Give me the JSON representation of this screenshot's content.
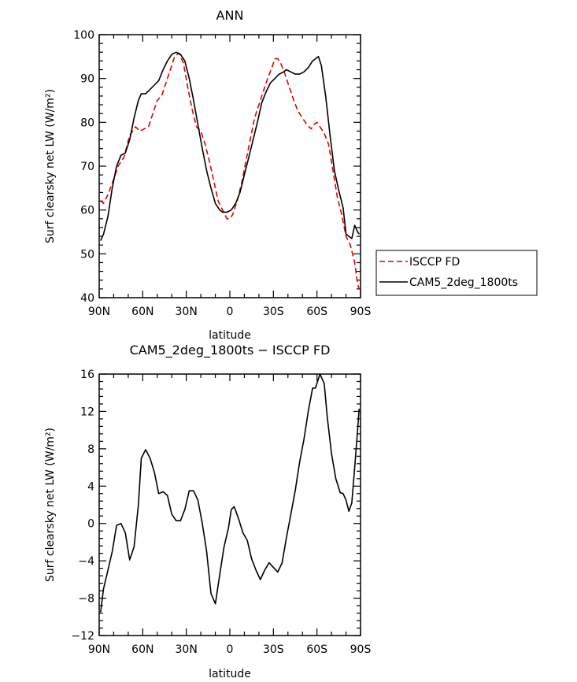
{
  "chart_data": [
    {
      "type": "line",
      "title": "ANN",
      "xlabel": "latitude",
      "ylabel": "Surf clearsky net LW (W/m²)",
      "xlim": [
        90,
        -90
      ],
      "ylim": [
        40,
        100
      ],
      "x_ticks": [
        {
          "value": 90,
          "label": "90N"
        },
        {
          "value": 60,
          "label": "60N"
        },
        {
          "value": 30,
          "label": "30N"
        },
        {
          "value": 0,
          "label": "0"
        },
        {
          "value": -30,
          "label": "30S"
        },
        {
          "value": -60,
          "label": "60S"
        },
        {
          "value": -90,
          "label": "90S"
        }
      ],
      "y_ticks": [
        40,
        50,
        60,
        70,
        80,
        90,
        100
      ],
      "legend_position": "right",
      "series": [
        {
          "name": "ISCCP FD",
          "color": "#e00000",
          "dash": "dashed",
          "points": [
            [
              89,
              62.2
            ],
            [
              87,
              61.5
            ],
            [
              84,
              63.5
            ],
            [
              80,
              67
            ],
            [
              77,
              70
            ],
            [
              73,
              72
            ],
            [
              69,
              77
            ],
            [
              65,
              79
            ],
            [
              62,
              78
            ],
            [
              59,
              78.5
            ],
            [
              56,
              79
            ],
            [
              53,
              82
            ],
            [
              50,
              85
            ],
            [
              47,
              86
            ],
            [
              44,
              89
            ],
            [
              41,
              92
            ],
            [
              38,
              95
            ],
            [
              35,
              95.8
            ],
            [
              32,
              93.5
            ],
            [
              29,
              88
            ],
            [
              26,
              83
            ],
            [
              23,
              79
            ],
            [
              20,
              78
            ],
            [
              17,
              75
            ],
            [
              14,
              71
            ],
            [
              11,
              66.5
            ],
            [
              8,
              62
            ],
            [
              5,
              60
            ],
            [
              2,
              58
            ],
            [
              0,
              58
            ],
            [
              -2,
              59
            ],
            [
              -5,
              62
            ],
            [
              -8,
              66
            ],
            [
              -11,
              71
            ],
            [
              -14,
              76
            ],
            [
              -17,
              81
            ],
            [
              -20,
              84
            ],
            [
              -23,
              87
            ],
            [
              -26,
              90
            ],
            [
              -29,
              92.5
            ],
            [
              -31,
              94.5
            ],
            [
              -33,
              94.5
            ],
            [
              -35,
              93.5
            ],
            [
              -38,
              91
            ],
            [
              -41,
              88
            ],
            [
              -44,
              85
            ],
            [
              -47,
              82.5
            ],
            [
              -50,
              81
            ],
            [
              -53,
              79.5
            ],
            [
              -56,
              78.5
            ],
            [
              -58,
              79.5
            ],
            [
              -60,
              80
            ],
            [
              -62,
              79
            ],
            [
              -65,
              77.5
            ],
            [
              -68,
              75
            ],
            [
              -71,
              69
            ],
            [
              -74,
              63
            ],
            [
              -77,
              59
            ],
            [
              -80,
              54
            ],
            [
              -83,
              52
            ],
            [
              -86,
              48
            ],
            [
              -88,
              43
            ],
            [
              -89,
              42
            ]
          ]
        },
        {
          "name": "CAM5_2deg_1800ts",
          "color": "#000000",
          "dash": "solid",
          "points": [
            [
              89,
              53
            ],
            [
              87,
              54.5
            ],
            [
              84,
              58.5
            ],
            [
              81,
              65
            ],
            [
              78,
              70
            ],
            [
              75,
              72.5
            ],
            [
              72,
              73
            ],
            [
              69,
              76
            ],
            [
              66,
              81
            ],
            [
              63,
              85
            ],
            [
              61,
              86.5
            ],
            [
              58,
              86.5
            ],
            [
              55,
              87.5
            ],
            [
              52,
              88.5
            ],
            [
              49,
              89.5
            ],
            [
              46,
              92
            ],
            [
              43,
              94
            ],
            [
              40,
              95.5
            ],
            [
              37,
              96
            ],
            [
              34,
              95.5
            ],
            [
              31,
              94
            ],
            [
              28,
              90
            ],
            [
              25,
              85
            ],
            [
              22,
              79.5
            ],
            [
              19,
              74
            ],
            [
              16,
              69
            ],
            [
              13,
              65
            ],
            [
              10,
              61.5
            ],
            [
              7,
              60
            ],
            [
              5,
              59.5
            ],
            [
              2,
              59.5
            ],
            [
              -1,
              60
            ],
            [
              -4,
              61.5
            ],
            [
              -7,
              64
            ],
            [
              -10,
              68
            ],
            [
              -13,
              72
            ],
            [
              -16,
              76
            ],
            [
              -19,
              80
            ],
            [
              -22,
              84.5
            ],
            [
              -25,
              87
            ],
            [
              -28,
              89
            ],
            [
              -31,
              90
            ],
            [
              -34,
              91
            ],
            [
              -37,
              91.5
            ],
            [
              -39,
              92
            ],
            [
              -42,
              91.5
            ],
            [
              -45,
              91
            ],
            [
              -48,
              91
            ],
            [
              -51,
              91.5
            ],
            [
              -54,
              92.5
            ],
            [
              -57,
              94
            ],
            [
              -59,
              94.5
            ],
            [
              -61,
              95
            ],
            [
              -63,
              93
            ],
            [
              -66,
              86
            ],
            [
              -69,
              77
            ],
            [
              -72,
              69
            ],
            [
              -75,
              64.5
            ],
            [
              -78,
              60.5
            ],
            [
              -80,
              54.5
            ],
            [
              -82,
              54
            ],
            [
              -84,
              53.5
            ],
            [
              -86,
              56.5
            ],
            [
              -88,
              55
            ],
            [
              -89,
              54.5
            ]
          ]
        }
      ]
    },
    {
      "type": "line",
      "title": "CAM5_2deg_1800ts − ISCCP FD",
      "xlabel": "latitude",
      "ylabel": "Surf clearsky net LW (W/m²)",
      "xlim": [
        90,
        -90
      ],
      "ylim": [
        -12,
        16
      ],
      "x_ticks": [
        {
          "value": 90,
          "label": "90N"
        },
        {
          "value": 60,
          "label": "60N"
        },
        {
          "value": 30,
          "label": "30N"
        },
        {
          "value": 0,
          "label": "0"
        },
        {
          "value": -30,
          "label": "30S"
        },
        {
          "value": -60,
          "label": "60S"
        },
        {
          "value": -90,
          "label": "90S"
        }
      ],
      "y_ticks": [
        -12,
        -8,
        -4,
        0,
        4,
        8,
        12,
        16
      ],
      "series": [
        {
          "color": "#000000",
          "dash": "solid",
          "points": [
            [
              89,
              -9.5
            ],
            [
              87,
              -7
            ],
            [
              84,
              -5
            ],
            [
              81,
              -3
            ],
            [
              78,
              -0.2
            ],
            [
              75,
              0
            ],
            [
              72,
              -1
            ],
            [
              69,
              -3.9
            ],
            [
              66,
              -2.5
            ],
            [
              63,
              2
            ],
            [
              61,
              7
            ],
            [
              58,
              7.9
            ],
            [
              55,
              7
            ],
            [
              52,
              5.5
            ],
            [
              49,
              3.2
            ],
            [
              46,
              3.4
            ],
            [
              43,
              3
            ],
            [
              40,
              1
            ],
            [
              37,
              0.3
            ],
            [
              34,
              0.3
            ],
            [
              31,
              1.5
            ],
            [
              28,
              3.5
            ],
            [
              25,
              3.5
            ],
            [
              22,
              2.5
            ],
            [
              19,
              0
            ],
            [
              16,
              -3
            ],
            [
              13,
              -7.5
            ],
            [
              10,
              -8.6
            ],
            [
              7,
              -5.5
            ],
            [
              4,
              -2.5
            ],
            [
              1,
              -0.5
            ],
            [
              -1,
              1.5
            ],
            [
              -3,
              1.8
            ],
            [
              -6,
              0.5
            ],
            [
              -9,
              -1
            ],
            [
              -12,
              -1.8
            ],
            [
              -15,
              -3.8
            ],
            [
              -18,
              -5
            ],
            [
              -21,
              -6
            ],
            [
              -24,
              -5
            ],
            [
              -27,
              -4.2
            ],
            [
              -30,
              -4.7
            ],
            [
              -33,
              -5.2
            ],
            [
              -36,
              -4.2
            ],
            [
              -39,
              -1.5
            ],
            [
              -42,
              1
            ],
            [
              -45,
              3.5
            ],
            [
              -48,
              6.5
            ],
            [
              -51,
              9
            ],
            [
              -54,
              12
            ],
            [
              -57,
              14.5
            ],
            [
              -59,
              14.5
            ],
            [
              -62,
              16
            ],
            [
              -65,
              15
            ],
            [
              -67,
              11.5
            ],
            [
              -70,
              7.5
            ],
            [
              -73,
              4.8
            ],
            [
              -76,
              3.3
            ],
            [
              -78,
              3.2
            ],
            [
              -80,
              2.5
            ],
            [
              -82,
              1.3
            ],
            [
              -84,
              2.2
            ],
            [
              -86,
              6
            ],
            [
              -88,
              10
            ],
            [
              -89,
              12.3
            ]
          ]
        }
      ]
    }
  ]
}
